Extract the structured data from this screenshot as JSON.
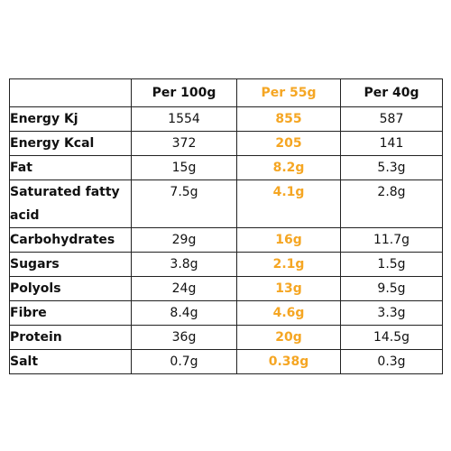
{
  "columns": [
    "",
    "Per 100g",
    "Per 55g",
    "Per 40g"
  ],
  "rows": [
    {
      "label": "Energy Kj",
      "v100": "1554",
      "v55": "855",
      "v40": "587"
    },
    {
      "label": "Energy Kcal",
      "v100": "372",
      "v55": "205",
      "v40": "141"
    },
    {
      "label": "Fat",
      "v100": "15g",
      "v55": "8.2g",
      "v40": "5.3g"
    },
    {
      "label": "Saturated fatty acid",
      "v100": "7.5g",
      "v55": "4.1g",
      "v40": "2.8g"
    },
    {
      "label": "Carbohydrates",
      "v100": "29g",
      "v55": "16g",
      "v40": "11.7g"
    },
    {
      "label": "Sugars",
      "v100": "3.8g",
      "v55": "2.1g",
      "v40": "1.5g"
    },
    {
      "label": "Polyols",
      "v100": "24g",
      "v55": "13g",
      "v40": "9.5g"
    },
    {
      "label": "Fibre",
      "v100": "8.4g",
      "v55": "4.6g",
      "v40": "3.3g"
    },
    {
      "label": "Protein",
      "v100": "36g",
      "v55": "20g",
      "v40": "14.5g"
    },
    {
      "label": "Salt",
      "v100": "0.7g",
      "v55": "0.38g",
      "v40": "0.3g"
    }
  ],
  "colors": {
    "highlight": "#f5a623",
    "border": "#222222"
  }
}
